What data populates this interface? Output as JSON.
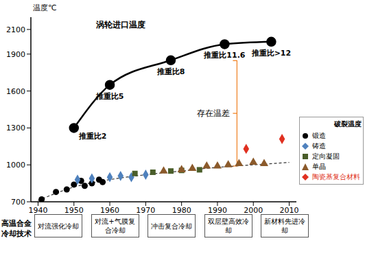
{
  "chart_data": {
    "type": "line",
    "title": "涡轮进口温度",
    "y_label": "温度℃",
    "xlim": [
      1938,
      2012
    ],
    "xticks": [
      1940,
      1950,
      1960,
      1970,
      1980,
      1990,
      2000,
      2010
    ],
    "ylim": [
      700,
      2200
    ],
    "yticks": [
      700,
      1000,
      1300,
      1600,
      1900,
      2100
    ],
    "grid": false,
    "legend": "right",
    "legend_title": "破裂温度",
    "annotation": "存在温差",
    "series": [
      {
        "type": "line",
        "color": "#000000",
        "marker": "circle",
        "line_style": "solid",
        "x": [
          1950,
          1960,
          1977,
          1992,
          2005
        ],
        "values": [
          1300,
          1650,
          1850,
          1980,
          2000
        ],
        "labels": [
          "推重比2",
          "推重比5",
          "推重比8",
          "推重比11.6",
          "推重比>12"
        ]
      },
      {
        "type": "line",
        "color": "#333333",
        "line_style": "dashed",
        "x": [
          1940,
          1950,
          1960,
          1970,
          1980,
          1990,
          2000,
          2010
        ],
        "values": [
          710,
          820,
          880,
          920,
          950,
          980,
          1000,
          1020
        ]
      },
      {
        "type": "scatter",
        "name": "锻造",
        "color": "#000000",
        "marker": "circle",
        "x": [
          1941,
          1945,
          1948,
          1950,
          1952,
          1953,
          1955,
          1957,
          1958
        ],
        "values": [
          720,
          780,
          800,
          840,
          870,
          830,
          850,
          880,
          860
        ]
      },
      {
        "type": "scatter",
        "name": "铸造",
        "color": "#4f81bd",
        "marker": "diamond",
        "x": [
          1951,
          1955,
          1960,
          1963,
          1966,
          1970
        ],
        "values": [
          880,
          890,
          900,
          910,
          900,
          920
        ]
      },
      {
        "type": "scatter",
        "name": "定向凝固",
        "color": "#4a5e2a",
        "marker": "square",
        "x": [
          1967,
          1972,
          1977,
          1980,
          1985
        ],
        "values": [
          930,
          940,
          950,
          955,
          960
        ]
      },
      {
        "type": "scatter",
        "name": "单晶",
        "color": "#8b5a2b",
        "marker": "triangle",
        "x": [
          1975,
          1980,
          1983,
          1987,
          1990,
          1993,
          1996,
          2000,
          2003
        ],
        "values": [
          950,
          960,
          970,
          990,
          990,
          1000,
          1010,
          1020,
          1010
        ]
      },
      {
        "type": "scatter",
        "name": "陶瓷基复合材料",
        "color": "#e03020",
        "marker": "diamond",
        "x": [
          1998,
          2008
        ],
        "values": [
          1130,
          1210
        ]
      }
    ],
    "cooling_technology": {
      "label": "高温合金冷却技术",
      "stages": [
        "对流强化冷却",
        "对流+气膜复合冷却",
        "冲击复合冷却",
        "双层壁高效冷却",
        "新材料先进冷却"
      ]
    }
  }
}
